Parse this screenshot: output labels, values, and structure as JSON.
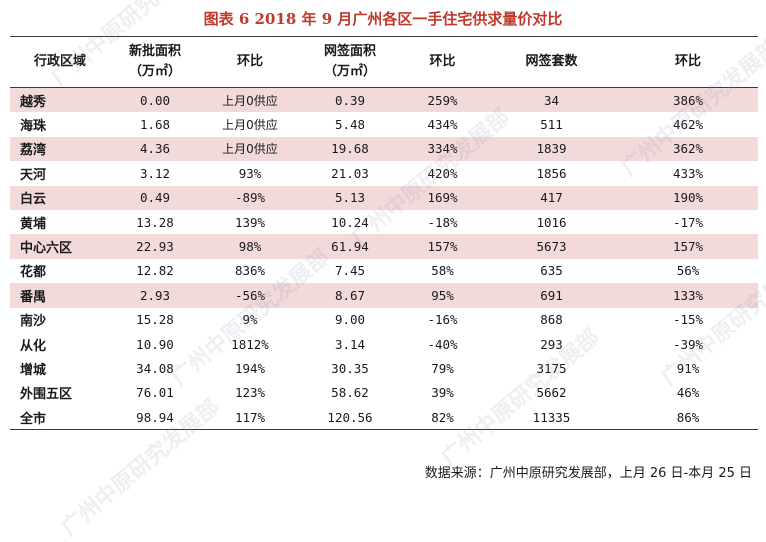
{
  "title": "图表 6   2018 年 9 月广州各区一手住宅供求量价对比",
  "headers": {
    "district": "行政区域",
    "supply_line1": "新批面积",
    "supply_line2": "（万㎡）",
    "supply_mom": "环比",
    "signed_line1": "网签面积",
    "signed_line2": "（万㎡）",
    "signed_mom": "环比",
    "units": "网签套数",
    "units_mom": "环比"
  },
  "rows": [
    {
      "district": "越秀",
      "supply": "0.00",
      "supply_mom": "上月0供应",
      "signed": "0.39",
      "signed_mom": "259%",
      "units": "34",
      "units_mom": "386%"
    },
    {
      "district": "海珠",
      "supply": "1.68",
      "supply_mom": "上月0供应",
      "signed": "5.48",
      "signed_mom": "434%",
      "units": "511",
      "units_mom": "462%"
    },
    {
      "district": "荔湾",
      "supply": "4.36",
      "supply_mom": "上月0供应",
      "signed": "19.68",
      "signed_mom": "334%",
      "units": "1839",
      "units_mom": "362%"
    },
    {
      "district": "天河",
      "supply": "3.12",
      "supply_mom": "93%",
      "signed": "21.03",
      "signed_mom": "420%",
      "units": "1856",
      "units_mom": "433%"
    },
    {
      "district": "白云",
      "supply": "0.49",
      "supply_mom": "-89%",
      "signed": "5.13",
      "signed_mom": "169%",
      "units": "417",
      "units_mom": "190%"
    },
    {
      "district": "黄埔",
      "supply": "13.28",
      "supply_mom": "139%",
      "signed": "10.24",
      "signed_mom": "-18%",
      "units": "1016",
      "units_mom": "-17%"
    },
    {
      "district": "中心六区",
      "supply": "22.93",
      "supply_mom": "98%",
      "signed": "61.94",
      "signed_mom": "157%",
      "units": "5673",
      "units_mom": "157%"
    },
    {
      "district": "花都",
      "supply": "12.82",
      "supply_mom": "836%",
      "signed": "7.45",
      "signed_mom": "58%",
      "units": "635",
      "units_mom": "56%"
    },
    {
      "district": "番禺",
      "supply": "2.93",
      "supply_mom": "-56%",
      "signed": "8.67",
      "signed_mom": "95%",
      "units": "691",
      "units_mom": "133%"
    },
    {
      "district": "南沙",
      "supply": "15.28",
      "supply_mom": "9%",
      "signed": "9.00",
      "signed_mom": "-16%",
      "units": "868",
      "units_mom": "-15%"
    },
    {
      "district": "从化",
      "supply": "10.90",
      "supply_mom": "1812%",
      "signed": "3.14",
      "signed_mom": "-40%",
      "units": "293",
      "units_mom": "-39%"
    },
    {
      "district": "增城",
      "supply": "34.08",
      "supply_mom": "194%",
      "signed": "30.35",
      "signed_mom": "79%",
      "units": "3175",
      "units_mom": "91%"
    },
    {
      "district": "外围五区",
      "supply": "76.01",
      "supply_mom": "123%",
      "signed": "58.62",
      "signed_mom": "39%",
      "units": "5662",
      "units_mom": "46%"
    },
    {
      "district": "全市",
      "supply": "98.94",
      "supply_mom": "117%",
      "signed": "120.56",
      "signed_mom": "82%",
      "units": "11335",
      "units_mom": "86%"
    }
  ],
  "source": "数据来源：广州中原研究发展部，上月 26 日-本月 25 日",
  "watermark": "广州中原研究发展部",
  "colors": {
    "title": "#c0392b",
    "row_shade": "#f3dada"
  }
}
